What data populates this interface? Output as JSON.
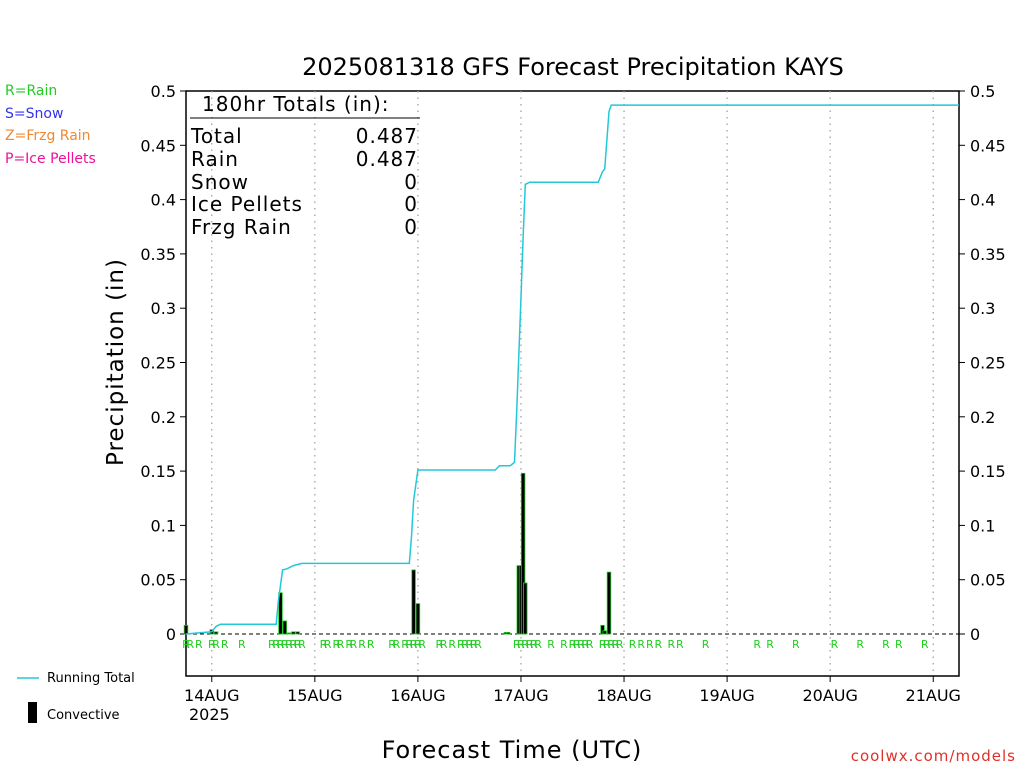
{
  "title": "2025081318 GFS Forecast Precipitation KAYS",
  "ylabel": "Precipitation  (in)",
  "xlabel": "Forecast Time (UTC)",
  "credit": "coolwx.com/models",
  "year_label": "2025",
  "type_legend": [
    {
      "text": "R=Rain",
      "color": "#22cc22"
    },
    {
      "text": "S=Snow",
      "color": "#3333ee"
    },
    {
      "text": "Z=Frzg Rain",
      "color": "#ee8833"
    },
    {
      "text": "P=Ice Pellets",
      "color": "#ee1199"
    }
  ],
  "key_running_total": "Running Total",
  "key_convective": "Convective",
  "totals_box": {
    "heading": "180hr Totals (in):",
    "rows": [
      {
        "label": "Total",
        "value": "0.487"
      },
      {
        "label": "Rain",
        "value": "0.487"
      },
      {
        "label": "Snow",
        "value": "0"
      },
      {
        "label": "Ice Pellets",
        "value": "0"
      },
      {
        "label": "Frzg Rain",
        "value": "0"
      }
    ]
  },
  "colors": {
    "running_total": "#22c8d8",
    "bar_fill": "#000000",
    "bar_edge": "#22cc22",
    "rain_label": "#22cc22"
  },
  "chart_data": {
    "type": "bar",
    "title": "2025081318 GFS Forecast Precipitation KAYS",
    "xlabel": "Forecast Time (UTC)",
    "ylabel": "Precipitation  (in)",
    "x_unit": "forecast hour from 2025-08-13 18Z",
    "xlim": [
      0,
      180
    ],
    "ylim": [
      0,
      0.5
    ],
    "y_ticks": [
      0,
      0.05,
      0.1,
      0.15,
      0.2,
      0.25,
      0.3,
      0.35,
      0.4,
      0.45,
      0.5
    ],
    "x_ticks": [
      {
        "hour": 6,
        "label": "14AUG"
      },
      {
        "hour": 30,
        "label": "15AUG"
      },
      {
        "hour": 54,
        "label": "16AUG"
      },
      {
        "hour": 78,
        "label": "17AUG"
      },
      {
        "hour": 102,
        "label": "18AUG"
      },
      {
        "hour": 126,
        "label": "19AUG"
      },
      {
        "hour": 150,
        "label": "20AUG"
      },
      {
        "hour": 174,
        "label": "21AUG"
      }
    ],
    "grid": "vertical dotted at day boundaries",
    "series": [
      {
        "name": "Running Total",
        "kind": "line",
        "points": [
          [
            0,
            0
          ],
          [
            6,
            0.002
          ],
          [
            7,
            0.007
          ],
          [
            8,
            0.009
          ],
          [
            21,
            0.009
          ],
          [
            21.5,
            0.03
          ],
          [
            22.5,
            0.059
          ],
          [
            23.5,
            0.06
          ],
          [
            25,
            0.063
          ],
          [
            27,
            0.065
          ],
          [
            52,
            0.065
          ],
          [
            52.5,
            0.09
          ],
          [
            53,
            0.123
          ],
          [
            54,
            0.151
          ],
          [
            72,
            0.151
          ],
          [
            73,
            0.155
          ],
          [
            75.5,
            0.155
          ],
          [
            76.5,
            0.158
          ],
          [
            77,
            0.205
          ],
          [
            78,
            0.31
          ],
          [
            78.5,
            0.365
          ],
          [
            79,
            0.414
          ],
          [
            80,
            0.416
          ],
          [
            96,
            0.416
          ],
          [
            97,
            0.426
          ],
          [
            97.5,
            0.428
          ],
          [
            98.5,
            0.481
          ],
          [
            99,
            0.487
          ],
          [
            180,
            0.487
          ]
        ]
      },
      {
        "name": "Convective",
        "kind": "bar",
        "points": [
          [
            0,
            0.008
          ],
          [
            6,
            0.004
          ],
          [
            7,
            0.002
          ],
          [
            22,
            0.038
          ],
          [
            23,
            0.012
          ],
          [
            24,
            0.001
          ],
          [
            25,
            0.002
          ],
          [
            26,
            0.002
          ],
          [
            53,
            0.059
          ],
          [
            54,
            0.028
          ],
          [
            74.5,
            0.0015
          ],
          [
            75,
            0.0015
          ],
          [
            77.5,
            0.063
          ],
          [
            78,
            0.063
          ],
          [
            78.5,
            0.148
          ],
          [
            79,
            0.047
          ],
          [
            97,
            0.008
          ],
          [
            97.5,
            0.003
          ],
          [
            98.5,
            0.057
          ]
        ]
      }
    ],
    "precip_type_markers": {
      "symbol": "R",
      "hours": [
        0,
        1,
        3,
        6,
        7,
        9,
        13,
        20,
        21,
        22,
        23,
        24,
        25,
        26,
        27,
        32,
        33,
        35,
        36,
        38,
        39,
        41,
        43,
        48,
        49,
        51,
        52,
        53,
        54,
        55,
        59,
        60,
        62,
        64,
        65,
        66,
        67,
        68,
        77,
        78,
        79,
        80,
        81,
        82,
        85,
        88,
        90,
        91,
        92,
        93,
        94,
        97,
        98,
        99,
        100,
        101,
        104,
        106,
        108,
        110,
        113,
        115,
        121,
        133,
        136,
        142,
        151,
        157,
        163,
        166,
        172
      ]
    }
  }
}
